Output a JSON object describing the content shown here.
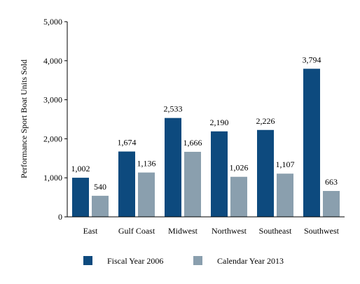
{
  "chart_data": {
    "type": "bar",
    "categories": [
      "East",
      "Gulf Coast",
      "Midwest",
      "Northwest",
      "Southeast",
      "Southwest"
    ],
    "series": [
      {
        "name": "Fiscal Year 2006",
        "values": [
          1002,
          1674,
          2533,
          2190,
          2226,
          3794
        ],
        "labels": [
          "1,002",
          "1,674",
          "2,533",
          "2,190",
          "2,226",
          "3,794"
        ],
        "color": "#0d4a7e"
      },
      {
        "name": "Calendar Year 2013",
        "values": [
          540,
          1136,
          1666,
          1026,
          1107,
          663
        ],
        "labels": [
          "540",
          "1,136",
          "1,666",
          "1,026",
          "1,107",
          "663"
        ],
        "color": "#8a9fae"
      }
    ],
    "ylabel": "Performance Sport Boat Units Sold",
    "xlabel": "",
    "ylim": [
      0,
      5000
    ],
    "yticks": [
      0,
      1000,
      2000,
      3000,
      4000,
      5000
    ],
    "ytick_labels": [
      "0",
      "1,000",
      "2,000",
      "3,000",
      "4,000",
      "5,000"
    ],
    "grid": false,
    "legend_position": "bottom"
  }
}
